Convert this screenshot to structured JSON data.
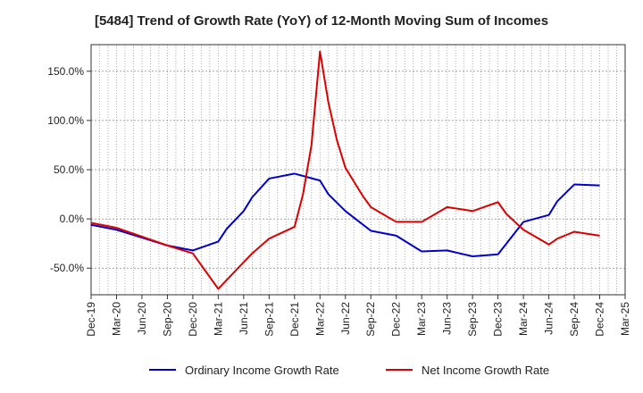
{
  "chart_data": {
    "type": "line",
    "title": "[5484]  Trend of Growth Rate (YoY) of 12-Month Moving Sum of Incomes",
    "xlabel": "",
    "ylabel": "",
    "ylim": [
      -77,
      177
    ],
    "y_ticks": [
      -50,
      0,
      50,
      100,
      150
    ],
    "y_tick_labels": [
      "-50.0%",
      "0.0%",
      "50.0%",
      "100.0%",
      "150.0%"
    ],
    "x_tick_labels": [
      "Dec-19",
      "Mar-20",
      "Jun-20",
      "Sep-20",
      "Dec-20",
      "Mar-21",
      "Jun-21",
      "Sep-21",
      "Dec-21",
      "Mar-22",
      "Jun-22",
      "Sep-22",
      "Dec-22",
      "Mar-23",
      "Jun-23",
      "Sep-23",
      "Dec-23",
      "Mar-24",
      "Jun-24",
      "Sep-24",
      "Dec-24",
      "Mar-25"
    ],
    "x_months": [
      "2019-12",
      "2020-01",
      "2020-02",
      "2020-03",
      "2020-04",
      "2020-05",
      "2020-06",
      "2020-07",
      "2020-08",
      "2020-09",
      "2020-10",
      "2020-11",
      "2020-12",
      "2021-01",
      "2021-02",
      "2021-03",
      "2021-04",
      "2021-05",
      "2021-06",
      "2021-07",
      "2021-08",
      "2021-09",
      "2021-10",
      "2021-11",
      "2021-12",
      "2022-01",
      "2022-02",
      "2022-03",
      "2022-04",
      "2022-05",
      "2022-06",
      "2022-07",
      "2022-08",
      "2022-09",
      "2022-10",
      "2022-11",
      "2022-12",
      "2023-01",
      "2023-02",
      "2023-03",
      "2023-04",
      "2023-05",
      "2023-06",
      "2023-07",
      "2023-08",
      "2023-09",
      "2023-10",
      "2023-11",
      "2023-12",
      "2024-01",
      "2024-02",
      "2024-03",
      "2024-04",
      "2024-05",
      "2024-06",
      "2024-07",
      "2024-08",
      "2024-09",
      "2024-10",
      "2024-11",
      "2024-12",
      "2025-01",
      "2025-02",
      "2025-03"
    ],
    "grid": true,
    "legend_position": "bottom",
    "series": [
      {
        "name": "Ordinary Income Growth Rate",
        "color": "#0000cc",
        "points": [
          [
            "2019-12",
            -6
          ],
          [
            "2020-03",
            -11
          ],
          [
            "2020-06",
            -19
          ],
          [
            "2020-09",
            -27
          ],
          [
            "2020-12",
            -32
          ],
          [
            "2021-03",
            -23
          ],
          [
            "2021-04",
            -10
          ],
          [
            "2021-06",
            8
          ],
          [
            "2021-07",
            22
          ],
          [
            "2021-09",
            41
          ],
          [
            "2021-12",
            46
          ],
          [
            "2022-03",
            39
          ],
          [
            "2022-04",
            25
          ],
          [
            "2022-06",
            8
          ],
          [
            "2022-09",
            -12
          ],
          [
            "2022-12",
            -17
          ],
          [
            "2023-03",
            -33
          ],
          [
            "2023-06",
            -32
          ],
          [
            "2023-09",
            -38
          ],
          [
            "2023-12",
            -36
          ],
          [
            "2024-03",
            -3
          ],
          [
            "2024-06",
            4
          ],
          [
            "2024-07",
            18
          ],
          [
            "2024-09",
            35
          ],
          [
            "2024-12",
            34
          ]
        ]
      },
      {
        "name": "Net Income Growth Rate",
        "color": "#dd0000",
        "points": [
          [
            "2019-12",
            -4
          ],
          [
            "2020-03",
            -9
          ],
          [
            "2020-06",
            -18
          ],
          [
            "2020-09",
            -27
          ],
          [
            "2020-12",
            -35
          ],
          [
            "2021-03",
            -71
          ],
          [
            "2021-04",
            -62
          ],
          [
            "2021-06",
            -44
          ],
          [
            "2021-07",
            -35
          ],
          [
            "2021-09",
            -20
          ],
          [
            "2021-12",
            -8
          ],
          [
            "2022-01",
            25
          ],
          [
            "2022-02",
            75
          ],
          [
            "2022-03",
            170
          ],
          [
            "2022-04",
            118
          ],
          [
            "2022-05",
            80
          ],
          [
            "2022-06",
            52
          ],
          [
            "2022-07",
            38
          ],
          [
            "2022-08",
            24
          ],
          [
            "2022-09",
            12
          ],
          [
            "2022-12",
            -3
          ],
          [
            "2023-03",
            -3
          ],
          [
            "2023-06",
            12
          ],
          [
            "2023-09",
            8
          ],
          [
            "2023-12",
            17
          ],
          [
            "2024-01",
            5
          ],
          [
            "2024-03",
            -11
          ],
          [
            "2024-06",
            -26
          ],
          [
            "2024-07",
            -20
          ],
          [
            "2024-09",
            -13
          ],
          [
            "2024-12",
            -17
          ]
        ]
      }
    ]
  }
}
